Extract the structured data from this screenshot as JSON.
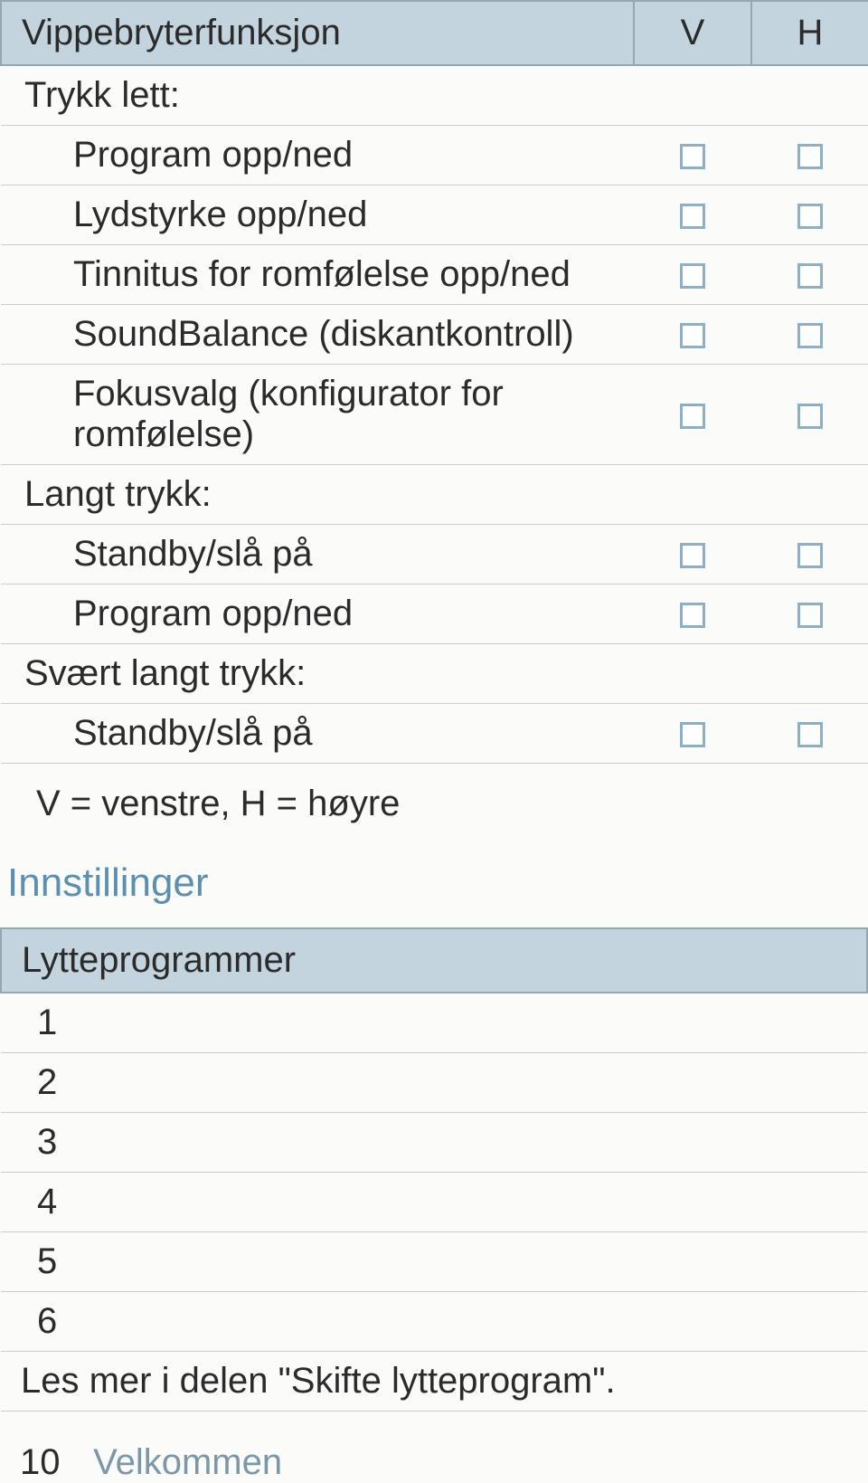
{
  "colors": {
    "header_bg": "#c4d4de",
    "header_border": "#93a8b3",
    "row_border": "#c9cfcf",
    "checkbox_border": "#8db0c6",
    "checkbox_bg": "#ffffff",
    "section_title": "#5c90b2",
    "footer_text": "#7b97a8",
    "body_text": "#2b2b2b",
    "page_bg": "#fbfcfa"
  },
  "typography": {
    "body_fontsize_pt": 30,
    "section_title_fontsize_pt": 33
  },
  "table1": {
    "header": {
      "title": "Vippebryterfunksjon",
      "col_v": "V",
      "col_h": "H"
    },
    "groups": [
      {
        "label": "Trykk lett:",
        "items": [
          {
            "label": "Program opp/ned",
            "v": false,
            "h": false
          },
          {
            "label": "Lydstyrke opp/ned",
            "v": false,
            "h": false
          },
          {
            "label": "Tinnitus for romfølelse opp/ned",
            "v": false,
            "h": false
          },
          {
            "label": "SoundBalance (diskantkontroll)",
            "v": false,
            "h": false
          },
          {
            "label": "Fokusvalg (konfigurator for romfølelse)",
            "v": false,
            "h": false
          }
        ]
      },
      {
        "label": "Langt trykk:",
        "items": [
          {
            "label": "Standby/slå på",
            "v": false,
            "h": false
          },
          {
            "label": "Program opp/ned",
            "v": false,
            "h": false
          }
        ]
      },
      {
        "label": "Svært langt trykk:",
        "items": [
          {
            "label": "Standby/slå på",
            "v": false,
            "h": false
          }
        ]
      }
    ],
    "legend": "V = venstre, H = høyre"
  },
  "section_title": "Innstillinger",
  "table2": {
    "header": "Lytteprogrammer",
    "rows": [
      "1",
      "2",
      "3",
      "4",
      "5",
      "6"
    ],
    "note": "Les mer i delen \"Skifte lytteprogram\"."
  },
  "footer": {
    "page_number": "10",
    "text": "Velkommen"
  }
}
